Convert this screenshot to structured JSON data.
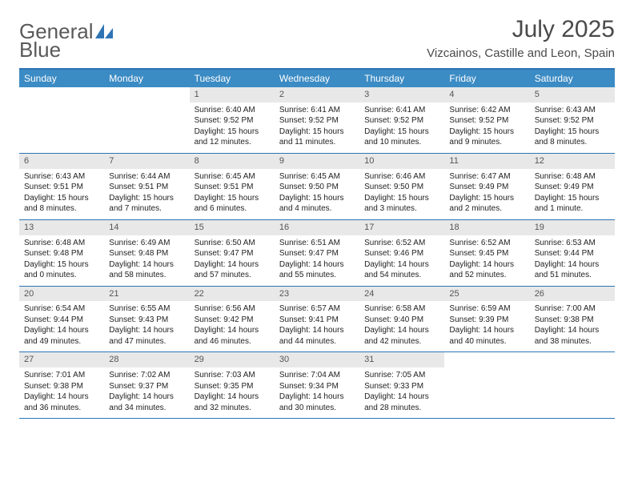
{
  "logo": {
    "text1": "General",
    "text2": "Blue"
  },
  "title": "July 2025",
  "location": "Vizcainos, Castille and Leon, Spain",
  "weekdays": [
    "Sunday",
    "Monday",
    "Tuesday",
    "Wednesday",
    "Thursday",
    "Friday",
    "Saturday"
  ],
  "colors": {
    "header_bg": "#3b8bc4",
    "border": "#2e74b5",
    "daynum_bg": "#e8e8e8",
    "text": "#222222"
  },
  "weeks": [
    [
      null,
      null,
      {
        "n": "1",
        "sr": "Sunrise: 6:40 AM",
        "ss": "Sunset: 9:52 PM",
        "d1": "Daylight: 15 hours",
        "d2": "and 12 minutes."
      },
      {
        "n": "2",
        "sr": "Sunrise: 6:41 AM",
        "ss": "Sunset: 9:52 PM",
        "d1": "Daylight: 15 hours",
        "d2": "and 11 minutes."
      },
      {
        "n": "3",
        "sr": "Sunrise: 6:41 AM",
        "ss": "Sunset: 9:52 PM",
        "d1": "Daylight: 15 hours",
        "d2": "and 10 minutes."
      },
      {
        "n": "4",
        "sr": "Sunrise: 6:42 AM",
        "ss": "Sunset: 9:52 PM",
        "d1": "Daylight: 15 hours",
        "d2": "and 9 minutes."
      },
      {
        "n": "5",
        "sr": "Sunrise: 6:43 AM",
        "ss": "Sunset: 9:52 PM",
        "d1": "Daylight: 15 hours",
        "d2": "and 8 minutes."
      }
    ],
    [
      {
        "n": "6",
        "sr": "Sunrise: 6:43 AM",
        "ss": "Sunset: 9:51 PM",
        "d1": "Daylight: 15 hours",
        "d2": "and 8 minutes."
      },
      {
        "n": "7",
        "sr": "Sunrise: 6:44 AM",
        "ss": "Sunset: 9:51 PM",
        "d1": "Daylight: 15 hours",
        "d2": "and 7 minutes."
      },
      {
        "n": "8",
        "sr": "Sunrise: 6:45 AM",
        "ss": "Sunset: 9:51 PM",
        "d1": "Daylight: 15 hours",
        "d2": "and 6 minutes."
      },
      {
        "n": "9",
        "sr": "Sunrise: 6:45 AM",
        "ss": "Sunset: 9:50 PM",
        "d1": "Daylight: 15 hours",
        "d2": "and 4 minutes."
      },
      {
        "n": "10",
        "sr": "Sunrise: 6:46 AM",
        "ss": "Sunset: 9:50 PM",
        "d1": "Daylight: 15 hours",
        "d2": "and 3 minutes."
      },
      {
        "n": "11",
        "sr": "Sunrise: 6:47 AM",
        "ss": "Sunset: 9:49 PM",
        "d1": "Daylight: 15 hours",
        "d2": "and 2 minutes."
      },
      {
        "n": "12",
        "sr": "Sunrise: 6:48 AM",
        "ss": "Sunset: 9:49 PM",
        "d1": "Daylight: 15 hours",
        "d2": "and 1 minute."
      }
    ],
    [
      {
        "n": "13",
        "sr": "Sunrise: 6:48 AM",
        "ss": "Sunset: 9:48 PM",
        "d1": "Daylight: 15 hours",
        "d2": "and 0 minutes."
      },
      {
        "n": "14",
        "sr": "Sunrise: 6:49 AM",
        "ss": "Sunset: 9:48 PM",
        "d1": "Daylight: 14 hours",
        "d2": "and 58 minutes."
      },
      {
        "n": "15",
        "sr": "Sunrise: 6:50 AM",
        "ss": "Sunset: 9:47 PM",
        "d1": "Daylight: 14 hours",
        "d2": "and 57 minutes."
      },
      {
        "n": "16",
        "sr": "Sunrise: 6:51 AM",
        "ss": "Sunset: 9:47 PM",
        "d1": "Daylight: 14 hours",
        "d2": "and 55 minutes."
      },
      {
        "n": "17",
        "sr": "Sunrise: 6:52 AM",
        "ss": "Sunset: 9:46 PM",
        "d1": "Daylight: 14 hours",
        "d2": "and 54 minutes."
      },
      {
        "n": "18",
        "sr": "Sunrise: 6:52 AM",
        "ss": "Sunset: 9:45 PM",
        "d1": "Daylight: 14 hours",
        "d2": "and 52 minutes."
      },
      {
        "n": "19",
        "sr": "Sunrise: 6:53 AM",
        "ss": "Sunset: 9:44 PM",
        "d1": "Daylight: 14 hours",
        "d2": "and 51 minutes."
      }
    ],
    [
      {
        "n": "20",
        "sr": "Sunrise: 6:54 AM",
        "ss": "Sunset: 9:44 PM",
        "d1": "Daylight: 14 hours",
        "d2": "and 49 minutes."
      },
      {
        "n": "21",
        "sr": "Sunrise: 6:55 AM",
        "ss": "Sunset: 9:43 PM",
        "d1": "Daylight: 14 hours",
        "d2": "and 47 minutes."
      },
      {
        "n": "22",
        "sr": "Sunrise: 6:56 AM",
        "ss": "Sunset: 9:42 PM",
        "d1": "Daylight: 14 hours",
        "d2": "and 46 minutes."
      },
      {
        "n": "23",
        "sr": "Sunrise: 6:57 AM",
        "ss": "Sunset: 9:41 PM",
        "d1": "Daylight: 14 hours",
        "d2": "and 44 minutes."
      },
      {
        "n": "24",
        "sr": "Sunrise: 6:58 AM",
        "ss": "Sunset: 9:40 PM",
        "d1": "Daylight: 14 hours",
        "d2": "and 42 minutes."
      },
      {
        "n": "25",
        "sr": "Sunrise: 6:59 AM",
        "ss": "Sunset: 9:39 PM",
        "d1": "Daylight: 14 hours",
        "d2": "and 40 minutes."
      },
      {
        "n": "26",
        "sr": "Sunrise: 7:00 AM",
        "ss": "Sunset: 9:38 PM",
        "d1": "Daylight: 14 hours",
        "d2": "and 38 minutes."
      }
    ],
    [
      {
        "n": "27",
        "sr": "Sunrise: 7:01 AM",
        "ss": "Sunset: 9:38 PM",
        "d1": "Daylight: 14 hours",
        "d2": "and 36 minutes."
      },
      {
        "n": "28",
        "sr": "Sunrise: 7:02 AM",
        "ss": "Sunset: 9:37 PM",
        "d1": "Daylight: 14 hours",
        "d2": "and 34 minutes."
      },
      {
        "n": "29",
        "sr": "Sunrise: 7:03 AM",
        "ss": "Sunset: 9:35 PM",
        "d1": "Daylight: 14 hours",
        "d2": "and 32 minutes."
      },
      {
        "n": "30",
        "sr": "Sunrise: 7:04 AM",
        "ss": "Sunset: 9:34 PM",
        "d1": "Daylight: 14 hours",
        "d2": "and 30 minutes."
      },
      {
        "n": "31",
        "sr": "Sunrise: 7:05 AM",
        "ss": "Sunset: 9:33 PM",
        "d1": "Daylight: 14 hours",
        "d2": "and 28 minutes."
      },
      null,
      null
    ]
  ]
}
